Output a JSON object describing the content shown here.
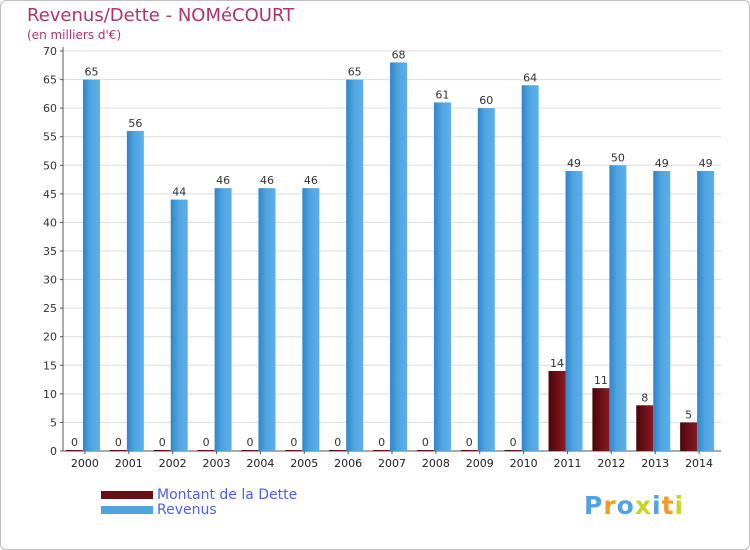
{
  "header": {
    "title": "Revenus/Dette - NOMéCOURT",
    "subtitle": "(en milliers d'€)"
  },
  "legend": {
    "debt_label": "Montant de la Dette",
    "revenue_label": "Revenus"
  },
  "logo": {
    "text": "Proxiti"
  },
  "colors": {
    "debt": "#6b0f16",
    "revenue": "#4fa3e0",
    "title": "#b03070",
    "legend_text": "#4d5ef0"
  },
  "chart_data": {
    "type": "bar",
    "title": "Revenus/Dette - NOMéCOURT",
    "ylabel": "(en milliers d'€)",
    "xlabel": "",
    "ylim": [
      0,
      70
    ],
    "yticks": [
      0,
      5,
      10,
      15,
      20,
      25,
      30,
      35,
      40,
      45,
      50,
      55,
      60,
      65,
      70
    ],
    "grid": true,
    "categories": [
      "2000",
      "2001",
      "2002",
      "2003",
      "2004",
      "2005",
      "2006",
      "2007",
      "2008",
      "2009",
      "2010",
      "2011",
      "2012",
      "2013",
      "2014"
    ],
    "series": [
      {
        "name": "Montant de la Dette",
        "values": [
          0,
          0,
          0,
          0,
          0,
          0,
          0,
          0,
          0,
          0,
          0,
          14,
          11,
          8,
          5
        ]
      },
      {
        "name": "Revenus",
        "values": [
          65,
          56,
          44,
          46,
          46,
          46,
          65,
          68,
          61,
          60,
          64,
          49,
          50,
          49,
          49
        ]
      }
    ]
  }
}
